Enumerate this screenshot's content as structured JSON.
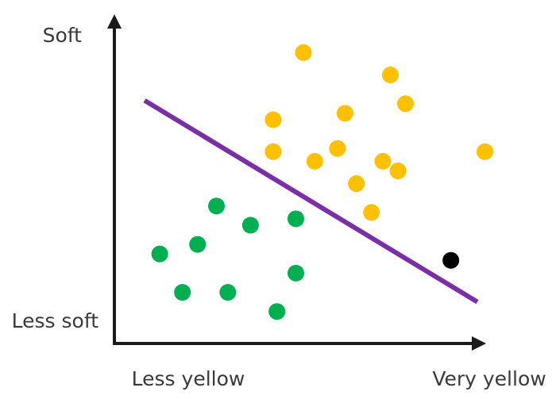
{
  "chart_data": {
    "type": "scatter",
    "xlabel": "",
    "ylabel": "",
    "x_tick_labels": {
      "low": "Less yellow",
      "high": "Very yellow"
    },
    "y_tick_labels": {
      "low": "Less soft",
      "high": "Soft"
    },
    "xlim": [
      0,
      10
    ],
    "ylim": [
      0,
      10
    ],
    "grid": false,
    "legend": "none",
    "series": [
      {
        "color": "#ffc000",
        "points": [
          [
            5.0,
            9.1
          ],
          [
            7.3,
            8.4
          ],
          [
            7.7,
            7.5
          ],
          [
            4.2,
            7.0
          ],
          [
            6.1,
            7.2
          ],
          [
            9.8,
            6.0
          ],
          [
            4.2,
            6.0
          ],
          [
            5.9,
            6.1
          ],
          [
            5.3,
            5.7
          ],
          [
            7.1,
            5.7
          ],
          [
            7.5,
            5.4
          ],
          [
            6.4,
            5.0
          ],
          [
            6.8,
            4.1
          ]
        ]
      },
      {
        "color": "#00b050",
        "points": [
          [
            2.7,
            4.3
          ],
          [
            3.6,
            3.7
          ],
          [
            4.8,
            3.9
          ],
          [
            2.2,
            3.1
          ],
          [
            1.2,
            2.8
          ],
          [
            4.8,
            2.2
          ],
          [
            1.8,
            1.6
          ],
          [
            3.0,
            1.6
          ],
          [
            4.3,
            1.0
          ]
        ]
      },
      {
        "color": "#000000",
        "points": [
          [
            8.9,
            2.6
          ]
        ]
      }
    ],
    "boundary_line": {
      "color": "#7030a0",
      "from": [
        0.8,
        7.6
      ],
      "to": [
        9.6,
        1.3
      ]
    }
  }
}
